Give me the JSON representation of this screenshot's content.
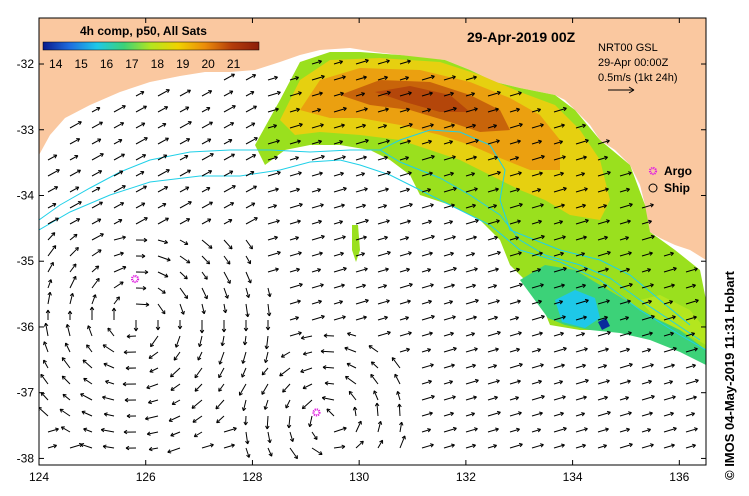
{
  "chart_data": {
    "type": "map",
    "title": "29-Apr-2019 00Z",
    "product": "4h comp, p50, All Sats",
    "colorbar": {
      "ticks": [
        14,
        15,
        16,
        17,
        18,
        19,
        20,
        21
      ],
      "range": [
        13.5,
        22
      ],
      "colors": [
        "#0a1a8c",
        "#1e6ee0",
        "#1ec8e8",
        "#3cd278",
        "#b4e61e",
        "#f0d200",
        "#eb8c0a",
        "#b43c0a",
        "#8c1e0a"
      ]
    },
    "xaxis": {
      "ticks": [
        124,
        126,
        128,
        130,
        132,
        134,
        136
      ],
      "range": [
        124,
        136.5
      ],
      "unit": "°E"
    },
    "yaxis": {
      "ticks": [
        -32,
        -33,
        -34,
        -35,
        -36,
        -37,
        -38
      ],
      "range": [
        -38.1,
        -31.3
      ],
      "unit": "°"
    },
    "info": {
      "line1": "NRT00 GSL",
      "line2": "29-Apr 00:00Z",
      "line3": "0.5m/s (1kt 24h)"
    },
    "legend": [
      {
        "name": "Argo",
        "color": "#e020e0"
      },
      {
        "name": "Ship",
        "color": "#000000"
      }
    ],
    "argo_floats": [
      {
        "lon": 125.8,
        "lat": -35.27
      },
      {
        "lon": 129.2,
        "lat": -37.3
      }
    ],
    "credit": "© IMOS 04-May-2019 11:31 Hobart",
    "colors": {
      "land": "#fac8a0",
      "ocean": "#ffffff",
      "contour": "#20d0e8",
      "argo": "#e020e0"
    }
  }
}
